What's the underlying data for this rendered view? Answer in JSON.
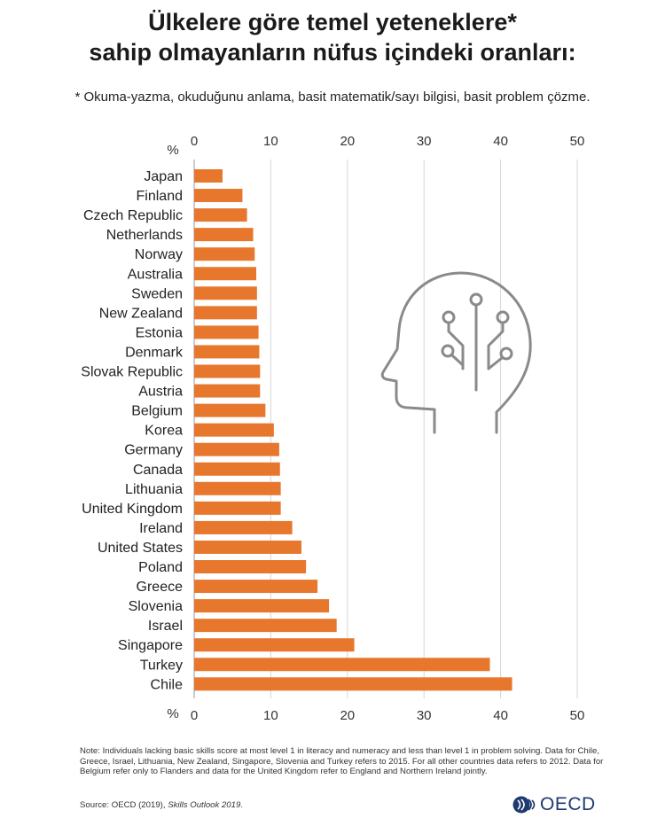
{
  "title_line1": "Ülkelere göre temel yeteneklere*",
  "title_line2": "sahip olmayanların nüfus içindeki oranları:",
  "subtitle": "* Okuma-yazma, okuduğunu anlama, basit matematik/sayı bilgisi, basit problem çözme.",
  "chart_data": {
    "type": "bar",
    "orientation": "horizontal",
    "unit_label": "%",
    "xlim": [
      0,
      50
    ],
    "xticks": [
      0,
      10,
      20,
      30,
      40,
      50
    ],
    "grid": true,
    "bar_color": "#e8772e",
    "categories": [
      "Japan",
      "Finland",
      "Czech Republic",
      "Netherlands",
      "Norway",
      "Australia",
      "Sweden",
      "New Zealand",
      "Estonia",
      "Denmark",
      "Slovak Republic",
      "Austria",
      "Belgium",
      "Korea",
      "Germany",
      "Canada",
      "Lithuania",
      "United Kingdom",
      "Ireland",
      "United States",
      "Poland",
      "Greece",
      "Slovenia",
      "Israel",
      "Singapore",
      "Turkey",
      "Chile"
    ],
    "values": [
      3.7,
      6.3,
      6.9,
      7.7,
      7.9,
      8.1,
      8.2,
      8.2,
      8.4,
      8.5,
      8.6,
      8.6,
      9.3,
      10.4,
      11.1,
      11.2,
      11.3,
      11.3,
      12.8,
      14.0,
      14.6,
      16.1,
      17.6,
      18.6,
      20.9,
      38.6,
      41.5
    ]
  },
  "note": "Note: Individuals lacking basic skills score at most level 1 in literacy and numeracy and less than level 1 in problem solving. Data for Chile, Greece, Israel, Lithuania, New Zealand, Singapore, Slovenia and Turkey refers to 2015. For all other countries data refers to 2012. Data for Belgium refer only to Flanders and data for the United Kingdom refer to England and Northern Ireland jointly.",
  "source_prefix": "Source: OECD (2019), ",
  "source_italic": "Skills Outlook 2019",
  "source_suffix": ".",
  "logo_text": "OECD",
  "icons": {
    "decoration": "head-circuit-icon",
    "logo": "oecd-logo-icon"
  }
}
